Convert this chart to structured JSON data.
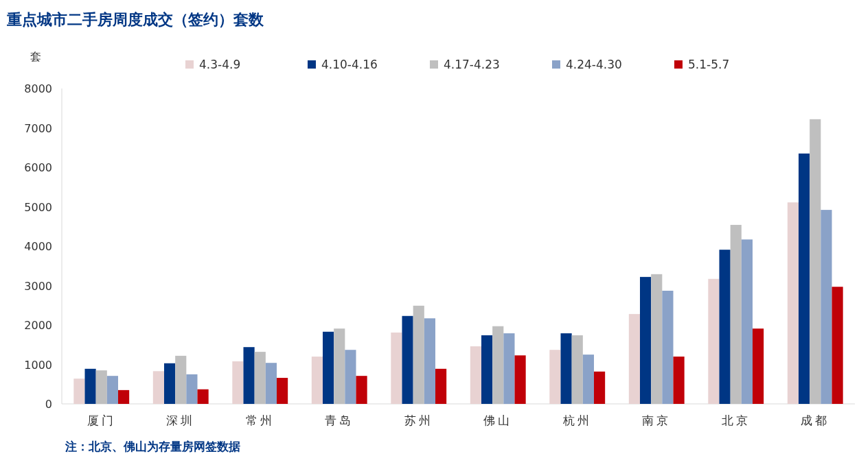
{
  "chart_data": {
    "type": "bar",
    "title": "重点城市二手房周度成交（签约）套数",
    "ylabel": "套",
    "categories": [
      "厦门",
      "深圳",
      "常州",
      "青岛",
      "苏州",
      "佛山",
      "杭州",
      "南京",
      "北京",
      "成都"
    ],
    "series": [
      {
        "name": "4.3-4.9",
        "color": "#e8d2d2",
        "values": [
          640,
          830,
          1080,
          1200,
          1810,
          1460,
          1370,
          2280,
          3170,
          5110
        ]
      },
      {
        "name": "4.10-4.16",
        "color": "#003684",
        "values": [
          890,
          1030,
          1440,
          1830,
          2230,
          1740,
          1790,
          3220,
          3910,
          6350
        ]
      },
      {
        "name": "4.17-4.23",
        "color": "#bfbfbf",
        "values": [
          850,
          1220,
          1320,
          1910,
          2490,
          1970,
          1740,
          3290,
          4540,
          7220
        ]
      },
      {
        "name": "4.24-4.30",
        "color": "#8aa2c8",
        "values": [
          710,
          750,
          1040,
          1370,
          2170,
          1790,
          1250,
          2870,
          4170,
          4920
        ]
      },
      {
        "name": "5.1-5.7",
        "color": "#c00008",
        "values": [
          350,
          370,
          660,
          710,
          890,
          1230,
          820,
          1200,
          1910,
          2970
        ]
      }
    ],
    "ylim": [
      0,
      8000
    ],
    "yticks": [
      0,
      1000,
      2000,
      3000,
      4000,
      5000,
      6000,
      7000,
      8000
    ],
    "legend": "top",
    "grid": false,
    "annotations": [
      "注：北京、佛山为存量房网签数据"
    ]
  }
}
